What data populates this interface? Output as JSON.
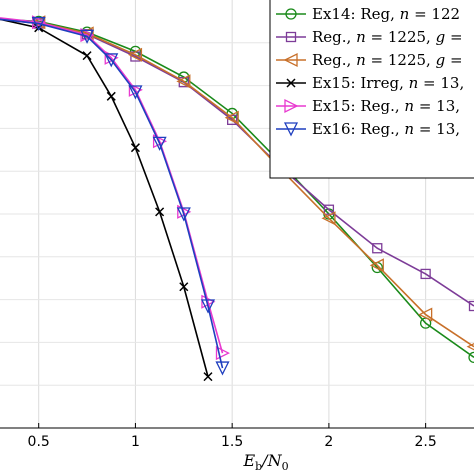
{
  "chart_data": {
    "type": "line",
    "title": "",
    "xlabel": "E_b/N_0",
    "ylabel": "",
    "xlim": [
      0.3,
      2.75
    ],
    "ylim": [
      0,
      1
    ],
    "grid": true,
    "legend_position": "top-right",
    "x_ticks": [
      0.5,
      1,
      1.5,
      2,
      2.5
    ],
    "x_tick_labels": [
      "0.5",
      "1",
      "1.5",
      "2",
      "2.5"
    ],
    "series": [
      {
        "name": "Ex14: Reg, n = 122",
        "color": "#1a8a1a",
        "marker": "circle",
        "x": [
          0.3,
          0.5,
          0.75,
          1.0,
          1.25,
          1.5,
          1.75,
          2.0,
          2.25,
          2.5,
          2.75
        ],
        "y": [
          0.955,
          0.95,
          0.925,
          0.88,
          0.82,
          0.735,
          0.62,
          0.5,
          0.375,
          0.245,
          0.165
        ]
      },
      {
        "name": "Reg., n = 1225, g =",
        "color": "#7d3c98",
        "marker": "square",
        "x": [
          0.3,
          0.5,
          0.75,
          1.0,
          1.25,
          1.5,
          1.75,
          2.0,
          2.25,
          2.5,
          2.75
        ],
        "y": [
          0.955,
          0.945,
          0.92,
          0.868,
          0.808,
          0.72,
          0.61,
          0.51,
          0.42,
          0.36,
          0.285
        ]
      },
      {
        "name": "Reg., n = 1225, g =",
        "color": "#c8702a",
        "marker": "triangle-left",
        "x": [
          0.3,
          0.5,
          0.75,
          1.0,
          1.25,
          1.5,
          1.75,
          2.0,
          2.25,
          2.5,
          2.75
        ],
        "y": [
          0.955,
          0.948,
          0.922,
          0.872,
          0.81,
          0.725,
          0.605,
          0.49,
          0.38,
          0.265,
          0.19
        ]
      },
      {
        "name": "Ex15: Irreg, n = 13,",
        "color": "#000000",
        "marker": "x",
        "x": [
          0.3,
          0.5,
          0.75,
          0.875,
          1.0,
          1.125,
          1.25,
          1.375
        ],
        "y": [
          0.955,
          0.935,
          0.87,
          0.775,
          0.655,
          0.505,
          0.33,
          0.12
        ]
      },
      {
        "name": "Ex15: Reg., n = 13,",
        "color": "#e83ad0",
        "marker": "triangle-right",
        "x": [
          0.3,
          0.5,
          0.75,
          0.875,
          1.0,
          1.125,
          1.25,
          1.375,
          1.45
        ],
        "y": [
          0.958,
          0.948,
          0.918,
          0.865,
          0.79,
          0.67,
          0.505,
          0.295,
          0.175
        ]
      },
      {
        "name": "Ex16: Reg., n = 13,",
        "color": "#1f3fbf",
        "marker": "triangle-down",
        "x": [
          0.3,
          0.5,
          0.75,
          0.875,
          1.0,
          1.125,
          1.25,
          1.375,
          1.45
        ],
        "y": [
          0.955,
          0.945,
          0.915,
          0.86,
          0.785,
          0.665,
          0.5,
          0.285,
          0.14
        ]
      }
    ]
  },
  "legend": {
    "entries": [
      {
        "prefix": "Ex14: Reg, ",
        "var": "n",
        "rest": " = 122"
      },
      {
        "prefix": "Reg., ",
        "var": "n",
        "rest": " = 1225, ",
        "var2": "g",
        "rest2": " ="
      },
      {
        "prefix": "Reg., ",
        "var": "n",
        "rest": " = 1225, ",
        "var2": "g",
        "rest2": " ="
      },
      {
        "prefix": "Ex15: Irreg, ",
        "var": "n",
        "rest": " = 13,"
      },
      {
        "prefix": "Ex15: Reg., ",
        "var": "n",
        "rest": " = 13,"
      },
      {
        "prefix": "Ex16: Reg., ",
        "var": "n",
        "rest": " = 13,"
      }
    ]
  },
  "axis": {
    "xlabel_main": "E",
    "xlabel_sub1": "b",
    "xlabel_mid": "/N",
    "xlabel_sub2": "0"
  }
}
